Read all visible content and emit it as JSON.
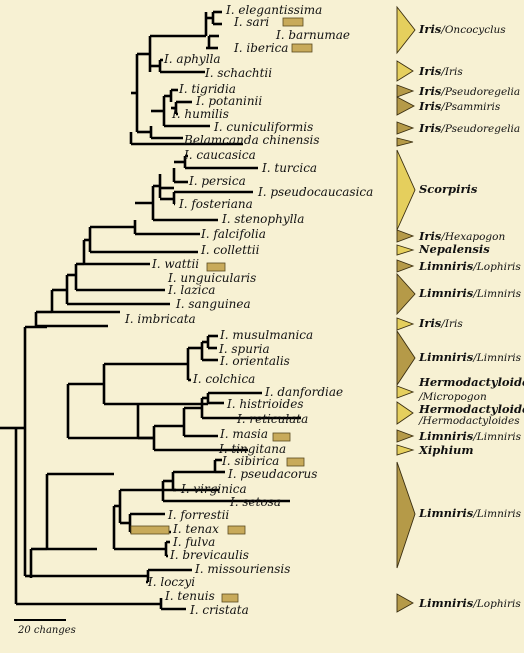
{
  "colors": {
    "background": "#f7f1d3",
    "branch": "#000000",
    "clade_gold": "#e5cf5d",
    "clade_brown": "#b59a48",
    "trait_bar": "#c8aa5a"
  },
  "taxa": [
    "I. elegantissima",
    "I. sari",
    "I. barnumae",
    "I. iberica",
    "I. aphylla",
    "I. schachtii",
    "I. tigridia",
    "I. potaninii",
    "I. humilis",
    "I. cuniculiformis",
    "Belamcanda chinensis",
    "I. caucasica",
    "I. turcica",
    "I. persica",
    "I. pseudocaucasica",
    "I. fosteriana",
    "I. stenophylla",
    "I. falcifolia",
    "I. collettii",
    "I. wattii",
    "I. unguicularis",
    "I. lazica",
    "I. sanguinea",
    "I. imbricata",
    "I. musulmanica",
    "I. spuria",
    "I. orientalis",
    "I. colchica",
    "I. danfordiae",
    "I. histrioides",
    "I. reticulata",
    "I. masia",
    "I. tingitana",
    "I. sibirica",
    "I. pseudacorus",
    "I. virginica",
    "I. setosa",
    "I. forrestii",
    "I. tenax",
    "I. fulva",
    "I. brevicaulis",
    "I. missouriensis",
    "I. loczyi",
    "I. tenuis",
    "I. cristata"
  ],
  "clades": [
    {
      "main": "Iris",
      "sub": "/Oncocyclus",
      "color": "gold"
    },
    {
      "main": "Iris",
      "sub": "/Iris",
      "color": "gold"
    },
    {
      "main": "Iris",
      "sub": "/Pseudoregelia",
      "color": "brown"
    },
    {
      "main": "Iris",
      "sub": "/Psammiris",
      "color": "brown"
    },
    {
      "main": "Iris",
      "sub": "/Pseudoregelia",
      "color": "brown"
    },
    {
      "main": "",
      "sub": "",
      "color": "brown"
    },
    {
      "main": "Scorpiris",
      "sub": "",
      "color": "gold"
    },
    {
      "main": "Iris",
      "sub": "/Hexapogon",
      "color": "brown"
    },
    {
      "main": "Nepalensis",
      "sub": "",
      "color": "gold"
    },
    {
      "main": "Limniris",
      "sub": "/Lophiris",
      "color": "brown"
    },
    {
      "main": "Limniris",
      "sub": "/Limniris",
      "color": "brown"
    },
    {
      "main": "Iris",
      "sub": "/Iris",
      "color": "gold"
    },
    {
      "main": "Limniris",
      "sub": "/Limniris",
      "color": "brown"
    },
    {
      "main": "Hermodactyloides",
      "sub": "/Micropogon",
      "color": "gold"
    },
    {
      "main": "Hermodactyloides",
      "sub": "/Hermodactyloides",
      "color": "gold"
    },
    {
      "main": "Limniris",
      "sub": "/Limniris",
      "color": "brown"
    },
    {
      "main": "Xiphium",
      "sub": "",
      "color": "gold"
    },
    {
      "main": "Limniris",
      "sub": "/Limniris",
      "color": "brown"
    },
    {
      "main": "Limniris",
      "sub": "/Lophiris",
      "color": "brown"
    }
  ],
  "scale_label": "20 changes"
}
